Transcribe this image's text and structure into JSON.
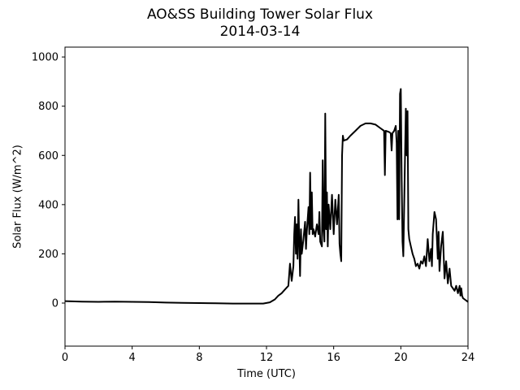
{
  "chart_data": {
    "type": "line",
    "title": "AO&SS Building Tower Solar Flux",
    "subtitle": "2014-03-14",
    "xlabel": "Time (UTC)",
    "ylabel": "Solar Flux (W/m^2)",
    "xlim": [
      0,
      24
    ],
    "ylim": [
      -175,
      1040
    ],
    "xticks": [
      0,
      4,
      8,
      12,
      16,
      20,
      24
    ],
    "yticks": [
      0,
      200,
      400,
      600,
      800,
      1000
    ],
    "grid": false,
    "line_color": "#000000",
    "series": [
      {
        "points": [
          [
            0,
            8
          ],
          [
            1,
            6
          ],
          [
            2,
            5
          ],
          [
            3,
            6
          ],
          [
            4,
            5
          ],
          [
            5,
            4
          ],
          [
            6,
            2
          ],
          [
            7,
            1
          ],
          [
            8,
            0
          ],
          [
            9,
            -1
          ],
          [
            10,
            -2
          ],
          [
            11,
            -2
          ],
          [
            11.8,
            -2
          ],
          [
            12.2,
            3
          ],
          [
            12.5,
            15
          ],
          [
            12.7,
            30
          ],
          [
            12.9,
            40
          ],
          [
            13.1,
            55
          ],
          [
            13.3,
            70
          ],
          [
            13.4,
            160
          ],
          [
            13.5,
            90
          ],
          [
            13.6,
            150
          ],
          [
            13.65,
            280
          ],
          [
            13.7,
            350
          ],
          [
            13.75,
            200
          ],
          [
            13.8,
            320
          ],
          [
            13.85,
            180
          ],
          [
            13.9,
            420
          ],
          [
            13.95,
            250
          ],
          [
            14.0,
            110
          ],
          [
            14.05,
            300
          ],
          [
            14.1,
            200
          ],
          [
            14.2,
            260
          ],
          [
            14.3,
            330
          ],
          [
            14.35,
            220
          ],
          [
            14.4,
            290
          ],
          [
            14.5,
            390
          ],
          [
            14.55,
            280
          ],
          [
            14.6,
            530
          ],
          [
            14.65,
            300
          ],
          [
            14.7,
            450
          ],
          [
            14.75,
            280
          ],
          [
            14.8,
            300
          ],
          [
            14.9,
            270
          ],
          [
            15.0,
            320
          ],
          [
            15.1,
            280
          ],
          [
            15.15,
            370
          ],
          [
            15.2,
            250
          ],
          [
            15.3,
            230
          ],
          [
            15.35,
            580
          ],
          [
            15.4,
            300
          ],
          [
            15.45,
            250
          ],
          [
            15.5,
            770
          ],
          [
            15.55,
            300
          ],
          [
            15.6,
            450
          ],
          [
            15.65,
            230
          ],
          [
            15.7,
            400
          ],
          [
            15.8,
            300
          ],
          [
            15.9,
            440
          ],
          [
            16.0,
            280
          ],
          [
            16.1,
            420
          ],
          [
            16.2,
            320
          ],
          [
            16.3,
            440
          ],
          [
            16.35,
            240
          ],
          [
            16.4,
            200
          ],
          [
            16.45,
            170
          ],
          [
            16.5,
            600
          ],
          [
            16.55,
            680
          ],
          [
            16.6,
            660
          ],
          [
            16.8,
            665
          ],
          [
            17.0,
            680
          ],
          [
            17.3,
            700
          ],
          [
            17.6,
            720
          ],
          [
            17.9,
            730
          ],
          [
            18.2,
            730
          ],
          [
            18.5,
            725
          ],
          [
            18.8,
            710
          ],
          [
            19.0,
            700
          ],
          [
            19.05,
            520
          ],
          [
            19.1,
            700
          ],
          [
            19.3,
            695
          ],
          [
            19.4,
            690
          ],
          [
            19.45,
            620
          ],
          [
            19.5,
            690
          ],
          [
            19.6,
            700
          ],
          [
            19.7,
            720
          ],
          [
            19.75,
            650
          ],
          [
            19.8,
            340
          ],
          [
            19.85,
            700
          ],
          [
            19.9,
            340
          ],
          [
            19.95,
            850
          ],
          [
            20.0,
            870
          ],
          [
            20.05,
            500
          ],
          [
            20.1,
            250
          ],
          [
            20.15,
            190
          ],
          [
            20.2,
            400
          ],
          [
            20.25,
            600
          ],
          [
            20.3,
            790
          ],
          [
            20.35,
            600
          ],
          [
            20.4,
            780
          ],
          [
            20.45,
            300
          ],
          [
            20.5,
            260
          ],
          [
            20.6,
            230
          ],
          [
            20.7,
            200
          ],
          [
            20.8,
            180
          ],
          [
            20.9,
            150
          ],
          [
            21.0,
            160
          ],
          [
            21.1,
            140
          ],
          [
            21.2,
            170
          ],
          [
            21.3,
            160
          ],
          [
            21.4,
            190
          ],
          [
            21.5,
            150
          ],
          [
            21.6,
            260
          ],
          [
            21.7,
            170
          ],
          [
            21.8,
            220
          ],
          [
            21.85,
            150
          ],
          [
            21.9,
            280
          ],
          [
            22.0,
            370
          ],
          [
            22.1,
            340
          ],
          [
            22.2,
            180
          ],
          [
            22.25,
            290
          ],
          [
            22.3,
            130
          ],
          [
            22.4,
            230
          ],
          [
            22.5,
            290
          ],
          [
            22.6,
            100
          ],
          [
            22.7,
            170
          ],
          [
            22.8,
            80
          ],
          [
            22.9,
            140
          ],
          [
            23.0,
            70
          ],
          [
            23.1,
            60
          ],
          [
            23.2,
            50
          ],
          [
            23.3,
            70
          ],
          [
            23.4,
            40
          ],
          [
            23.5,
            70
          ],
          [
            23.55,
            30
          ],
          [
            23.6,
            60
          ],
          [
            23.65,
            30
          ],
          [
            23.7,
            20
          ],
          [
            23.8,
            15
          ],
          [
            23.9,
            10
          ],
          [
            24.0,
            5
          ]
        ]
      }
    ]
  }
}
